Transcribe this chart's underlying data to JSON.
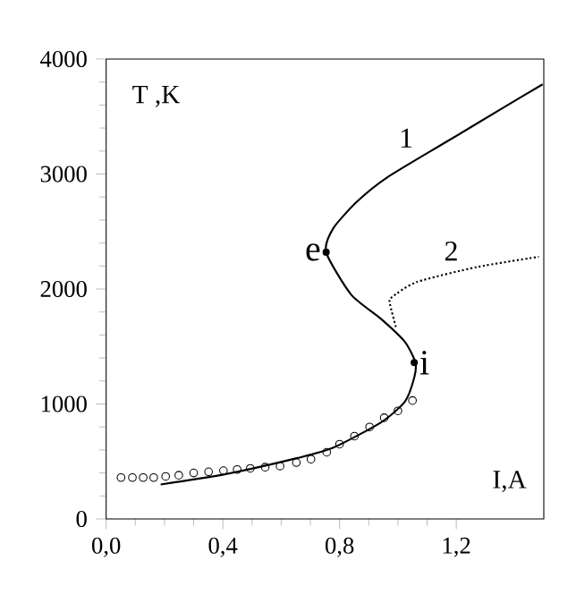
{
  "chart_data": {
    "type": "line",
    "xlabel": "I,A",
    "ylabel": "T ,K",
    "xlim": [
      0,
      1.5
    ],
    "ylim": [
      0,
      4000
    ],
    "xticks": [
      {
        "value": 0,
        "label": "0,0"
      },
      {
        "value": 0.4,
        "label": "0,4"
      },
      {
        "value": 0.8,
        "label": "0,8"
      },
      {
        "value": 1.2,
        "label": "1,2"
      }
    ],
    "yticks": [
      0,
      1000,
      2000,
      3000,
      4000
    ],
    "series": [
      {
        "name": "1",
        "color": "#000000",
        "line_style": "solid",
        "marker": "none",
        "x": [
          0.187,
          0.41,
          0.656,
          0.779,
          0.942,
          1.024,
          1.056,
          1.06,
          1.024,
          0.942,
          0.84,
          0.754,
          0.779,
          0.86,
          0.963,
          1.166,
          1.37,
          1.496
        ],
        "values": [
          300,
          390,
          530,
          620,
          840,
          1020,
          1230,
          1360,
          1540,
          1740,
          1950,
          2320,
          2530,
          2760,
          2970,
          3280,
          3590,
          3780
        ]
      },
      {
        "name": "2",
        "color": "#000000",
        "line_style": "dotted",
        "marker": "none",
        "x": [
          0.993,
          0.972,
          0.98,
          1.064,
          1.269,
          1.483
        ],
        "values": [
          1670,
          1880,
          1930,
          2060,
          2190,
          2280
        ]
      },
      {
        "type": "scatter",
        "color": "#000000",
        "marker": "circle",
        "x": [
          0.051,
          0.09,
          0.127,
          0.163,
          0.204,
          0.249,
          0.3,
          0.351,
          0.402,
          0.449,
          0.494,
          0.545,
          0.596,
          0.652,
          0.702,
          0.756,
          0.8,
          0.851,
          0.903,
          0.953,
          1.0,
          1.05
        ],
        "values": [
          360,
          360,
          360,
          360,
          370,
          380,
          400,
          410,
          420,
          430,
          440,
          450,
          460,
          490,
          520,
          580,
          650,
          720,
          800,
          880,
          940,
          1030
        ]
      },
      {
        "type": "scatter",
        "color": "#000000",
        "marker": "dot",
        "x": [
          0.754,
          1.056
        ],
        "values": [
          2320,
          1360
        ]
      }
    ],
    "annotations": [
      {
        "text": "e",
        "x": 0.754,
        "y": 2320
      },
      {
        "text": "i",
        "x": 1.056,
        "y": 1360
      }
    ]
  }
}
